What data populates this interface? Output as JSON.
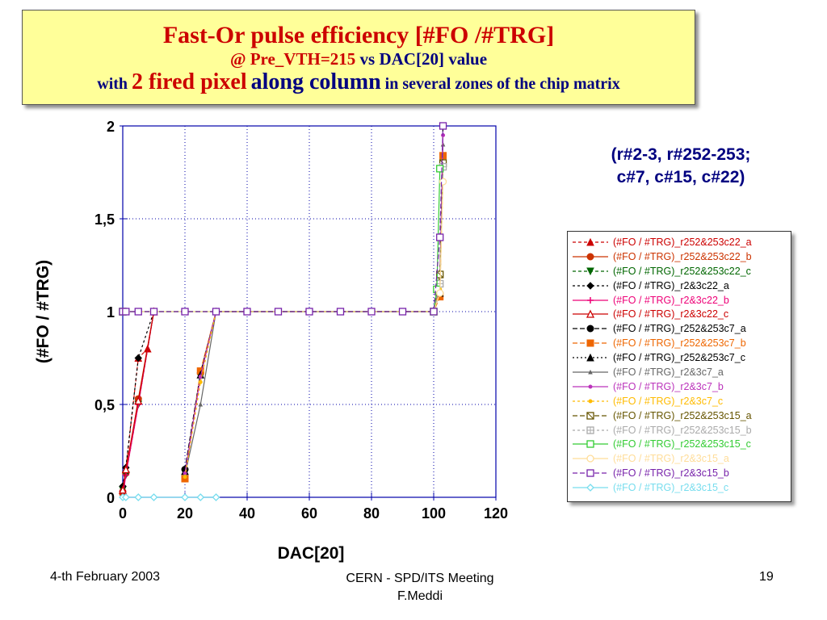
{
  "title": {
    "line1": "Fast-Or pulse efficiency [#FO /#TRG]",
    "line2_a": "@ Pre_VTH=215",
    "line2_b": "vs DAC[20] value",
    "line3_a": "with",
    "line3_b": "2 fired pixel",
    "line3_c": "along column",
    "line3_d": "in several zones of the chip matrix"
  },
  "subtitle": {
    "line1": "(r#2-3, r#252-253;",
    "line2": "c#7, c#15, c#22)"
  },
  "footer": {
    "date": "4-th February 2003",
    "meeting": "CERN - SPD/ITS Meeting",
    "author": "F.Meddi",
    "page": "19"
  },
  "chart_data": {
    "type": "line",
    "xlabel": "DAC[20]",
    "ylabel": "(#FO / #TRG)",
    "xlim": [
      0,
      120
    ],
    "ylim": [
      0,
      2
    ],
    "xticks": [
      "0",
      "20",
      "40",
      "60",
      "80",
      "100",
      "120"
    ],
    "yticks": [
      "0",
      "0,5",
      "1",
      "1,5",
      "2"
    ],
    "grid": true,
    "legend_position": "right",
    "series": [
      {
        "name": "(#FO / #TRG)_r252&253c22_a",
        "color": "#cc0000",
        "marker": "triangle",
        "dash": "4,3",
        "x": [
          0,
          1,
          5,
          8,
          10
        ],
        "y": [
          0.05,
          0.15,
          0.75,
          0.8,
          1.0
        ]
      },
      {
        "name": "(#FO / #TRG)_r252&253c22_b",
        "color": "#cc3300",
        "marker": "circle",
        "dash": "",
        "x": [
          0,
          1,
          5,
          10
        ],
        "y": [
          0.02,
          0.13,
          0.53,
          1.0
        ]
      },
      {
        "name": "(#FO / #TRG)_r252&253c22_c",
        "color": "#006600",
        "marker": "triangle-down",
        "dash": "4,3",
        "x": [
          0,
          1,
          5,
          10
        ],
        "y": [
          0.04,
          0.12,
          0.5,
          1.0
        ]
      },
      {
        "name": "(#FO / #TRG)_r2&3c22_a",
        "color": "#000000",
        "marker": "diamond",
        "dash": "3,3",
        "x": [
          0,
          1,
          5,
          10
        ],
        "y": [
          0.06,
          0.16,
          0.75,
          1.0
        ]
      },
      {
        "name": "(#FO / #TRG)_r2&3c22_b",
        "color": "#ee0077",
        "marker": "plus",
        "dash": "",
        "x": [
          0,
          1,
          5,
          10
        ],
        "y": [
          0.0,
          0.12,
          0.5,
          1.0
        ]
      },
      {
        "name": "(#FO / #TRG)_r2&3c22_c",
        "color": "#cc0000",
        "marker": "triangle-open",
        "dash": "",
        "x": [
          0,
          1,
          5,
          10
        ],
        "y": [
          0.04,
          0.15,
          0.52,
          1.0
        ]
      },
      {
        "name": "(#FO / #TRG)_r252&253c7_a",
        "color": "#000000",
        "marker": "circle",
        "dash": "6,3",
        "x": [
          20,
          25,
          30,
          100,
          102,
          103
        ],
        "y": [
          0.15,
          0.67,
          1.0,
          1.0,
          1.1,
          2.0
        ]
      },
      {
        "name": "(#FO / #TRG)_r252&253c7_b",
        "color": "#ee6600",
        "marker": "square",
        "dash": "6,3",
        "x": [
          20,
          25,
          30,
          100,
          102,
          103
        ],
        "y": [
          0.1,
          0.68,
          1.0,
          1.0,
          1.08,
          1.84
        ]
      },
      {
        "name": "(#FO / #TRG)_r252&253c7_c",
        "color": "#000000",
        "marker": "triangle",
        "dash": "2,3",
        "x": [
          20,
          25,
          30,
          100,
          102,
          103
        ],
        "y": [
          0.14,
          0.66,
          1.0,
          1.0,
          1.1,
          1.8
        ]
      },
      {
        "name": "(#FO / #TRG)_r2&3c7_a",
        "color": "#666666",
        "marker": "small-triangle",
        "dash": "",
        "x": [
          20,
          25,
          30,
          100,
          102,
          103
        ],
        "y": [
          0.12,
          0.5,
          1.0,
          1.0,
          1.2,
          1.9
        ]
      },
      {
        "name": "(#FO / #TRG)_r2&3c7_b",
        "color": "#bb33bb",
        "marker": "small-circle",
        "dash": "",
        "x": [
          20,
          25,
          30,
          100,
          102,
          103
        ],
        "y": [
          0.13,
          0.65,
          1.0,
          1.0,
          1.15,
          1.95
        ]
      },
      {
        "name": "(#FO / #TRG)_r2&3c7_c",
        "color": "#ffbb00",
        "marker": "small-circle",
        "dash": "3,3",
        "x": [
          20,
          25,
          30,
          100,
          102,
          103
        ],
        "y": [
          0.11,
          0.62,
          1.0,
          1.0,
          1.12,
          1.7
        ]
      },
      {
        "name": "(#FO / #TRG)_r252&253c15_a",
        "color": "#665500",
        "marker": "square-x",
        "dash": "6,3",
        "x": [
          0,
          100,
          102,
          103
        ],
        "y": [
          1.0,
          1.0,
          1.2,
          1.8
        ]
      },
      {
        "name": "(#FO / #TRG)_r252&253c15_b",
        "color": "#aaaaaa",
        "marker": "square-plus",
        "dash": "3,3",
        "x": [
          0,
          100,
          102,
          103
        ],
        "y": [
          1.0,
          1.0,
          1.15,
          1.78
        ]
      },
      {
        "name": "(#FO / #TRG)_r252&253c15_c",
        "color": "#33cc33",
        "marker": "square-open",
        "dash": "",
        "x": [
          0,
          100,
          101,
          102
        ],
        "y": [
          1.0,
          1.0,
          1.12,
          1.77
        ]
      },
      {
        "name": "(#FO / #TRG)_r2&3c15_a",
        "color": "#ffdd99",
        "marker": "circle-open",
        "dash": "",
        "x": [
          0,
          100,
          102,
          103
        ],
        "y": [
          1.0,
          1.0,
          1.1,
          1.7
        ]
      },
      {
        "name": "(#FO / #TRG)_r2&3c15_b",
        "color": "#7722aa",
        "marker": "square-open",
        "dash": "6,3",
        "x": [
          0,
          1,
          5,
          10,
          20,
          30,
          40,
          50,
          60,
          70,
          80,
          90,
          100,
          102,
          103
        ],
        "y": [
          1.0,
          1.0,
          1.0,
          1.0,
          1.0,
          1.0,
          1.0,
          1.0,
          1.0,
          1.0,
          1.0,
          1.0,
          1.0,
          1.4,
          2.0
        ]
      },
      {
        "name": "(#FO / #TRG)_r2&3c15_c",
        "color": "#77ddee",
        "marker": "diamond-open",
        "dash": "",
        "x": [
          0,
          1,
          5,
          10,
          20,
          25,
          30
        ],
        "y": [
          0.0,
          0.0,
          0.0,
          0.0,
          0.0,
          0.0,
          0.0
        ]
      }
    ]
  }
}
